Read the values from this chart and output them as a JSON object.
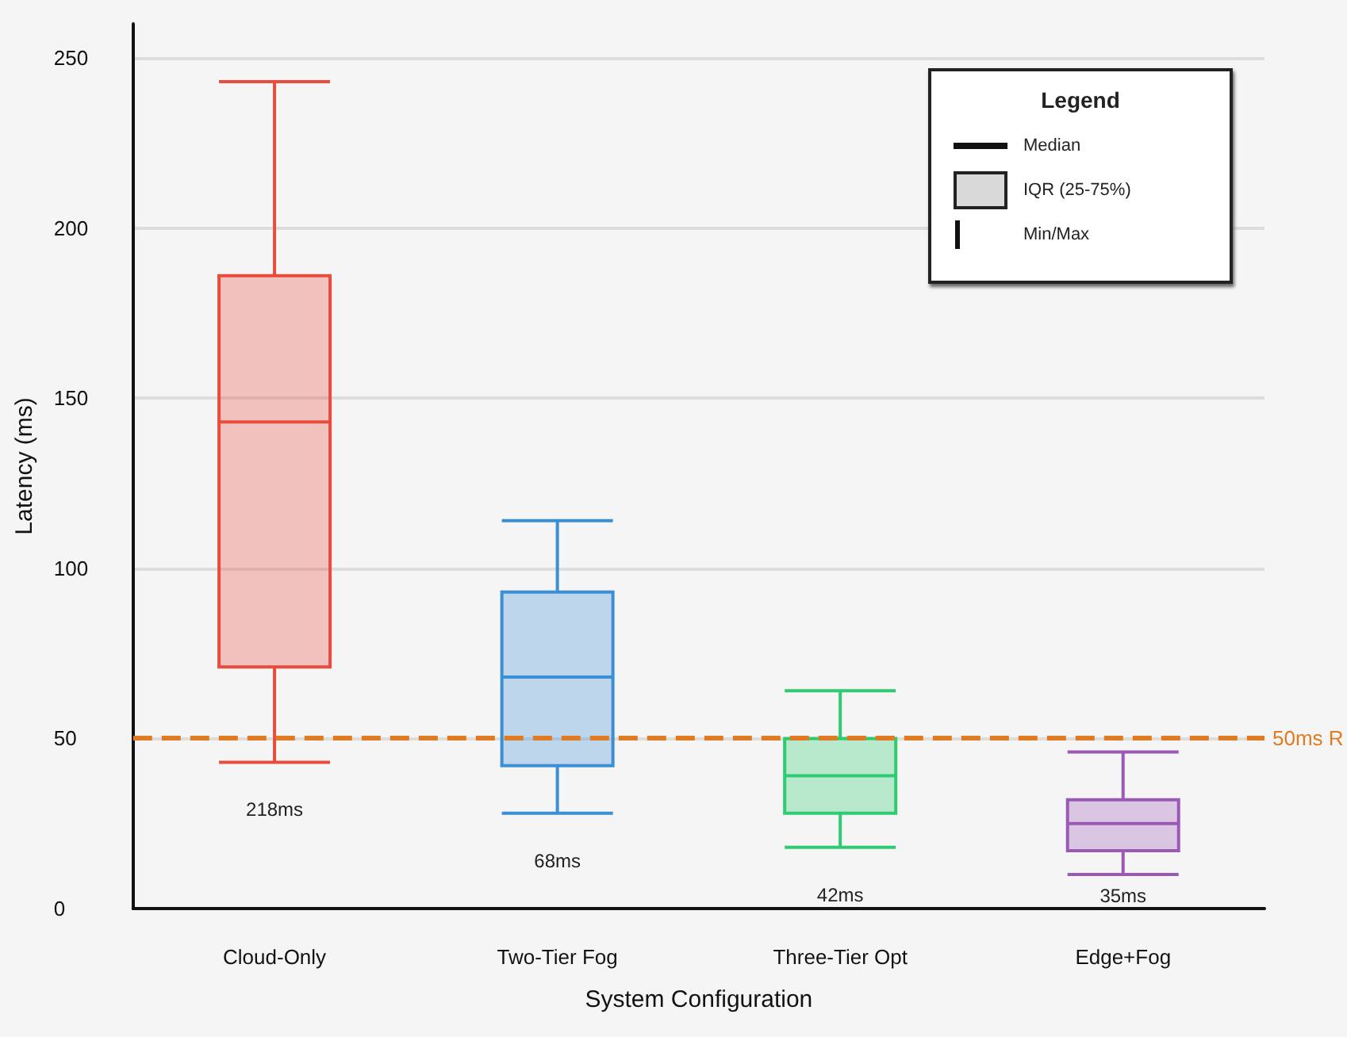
{
  "chart_data": {
    "type": "box",
    "xlabel": "System Configuration",
    "ylabel": "Latency (ms)",
    "categories": [
      "Cloud-Only",
      "Two-Tier Fog",
      "Three-Tier Opt",
      "Edge+Fog"
    ],
    "colors": [
      "#e74c3c",
      "#3a8fd6",
      "#2ecc71",
      "#9b59b6"
    ],
    "boxes": [
      {
        "low": 43,
        "q1": 71,
        "median": 143,
        "q3": 186,
        "high": 243
      },
      {
        "low": 28,
        "q1": 42,
        "median": 68,
        "q3": 93,
        "high": 114
      },
      {
        "low": 18,
        "q1": 28,
        "median": 39,
        "q3": 50,
        "high": 64
      },
      {
        "low": 10,
        "q1": 17,
        "median": 25,
        "q3": 32,
        "high": 46
      }
    ],
    "ylim": [
      0,
      260
    ],
    "yticks": [
      0,
      50,
      100,
      150,
      200,
      250
    ],
    "grid": "y",
    "ref_lines": [
      {
        "axis": "y",
        "value": 50,
        "label": "50ms R",
        "color": "#e07b24",
        "line_style": "dashed"
      }
    ],
    "legend_title": "Legend",
    "annotations": [
      "Median",
      "IQR (25-75%)",
      "Min/Max",
      "218ms",
      "68ms",
      "42ms",
      "35ms"
    ]
  }
}
